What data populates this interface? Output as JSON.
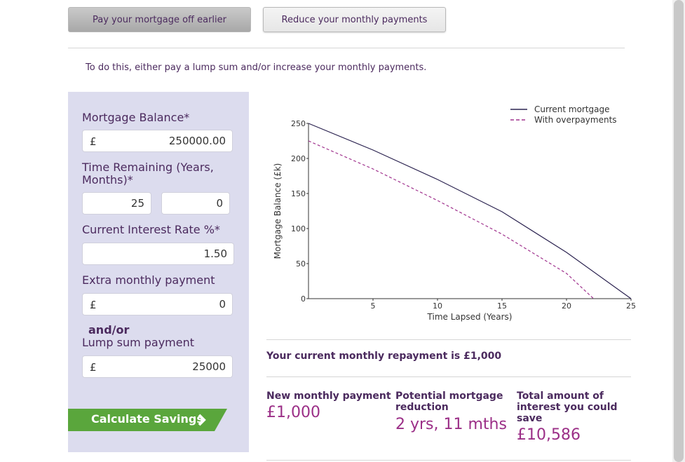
{
  "tabs": {
    "pay_off_earlier": "Pay your mortgage off earlier",
    "reduce_monthly": "Reduce your monthly payments"
  },
  "intro": "To do this, either pay a lump sum and/or increase your monthly payments.",
  "form": {
    "balance_label": "Mortgage Balance*",
    "currency": "£",
    "balance_value": "250000.00",
    "time_label": "Time Remaining (Years, Months)*",
    "years_value": "25",
    "months_value": "0",
    "rate_label": "Current Interest Rate %*",
    "rate_value": "1.50",
    "extra_label": "Extra monthly payment",
    "extra_value": "0",
    "andor": "and/or",
    "lump_label": "Lump sum payment",
    "lump_value": "25000",
    "calculate_button": "Calculate Savings"
  },
  "chart_data": {
    "type": "line",
    "xlabel": "Time Lapsed (Years)",
    "ylabel": "Mortgage Balance (£k)",
    "xlim": [
      0,
      25
    ],
    "ylim": [
      0,
      250
    ],
    "x_ticks": [
      "5",
      "10",
      "15",
      "20",
      "25"
    ],
    "y_ticks": [
      "0",
      "50",
      "100",
      "150",
      "200",
      "250"
    ],
    "legend_position": "top-right",
    "series": [
      {
        "name": "Current mortgage",
        "style": "solid",
        "color": "#2b2350",
        "points": [
          [
            0,
            250
          ],
          [
            5,
            212
          ],
          [
            10,
            170
          ],
          [
            15,
            124
          ],
          [
            20,
            66
          ],
          [
            25,
            0
          ]
        ]
      },
      {
        "name": "With overpayments",
        "style": "dashed",
        "color": "#a0338e",
        "points": [
          [
            0,
            225
          ],
          [
            5,
            185
          ],
          [
            10,
            140
          ],
          [
            15,
            92
          ],
          [
            20,
            36
          ],
          [
            22.1,
            0
          ]
        ]
      }
    ]
  },
  "results": {
    "current_repayment": "Your current monthly repayment is £1,000",
    "new_payment_label": "New monthly payment",
    "new_payment_value": "£1,000",
    "reduction_label": "Potential mortgage reduction",
    "reduction_value": "2 yrs, 11 mths",
    "interest_label": "Total amount of interest you could save",
    "interest_value": "£10,586"
  }
}
